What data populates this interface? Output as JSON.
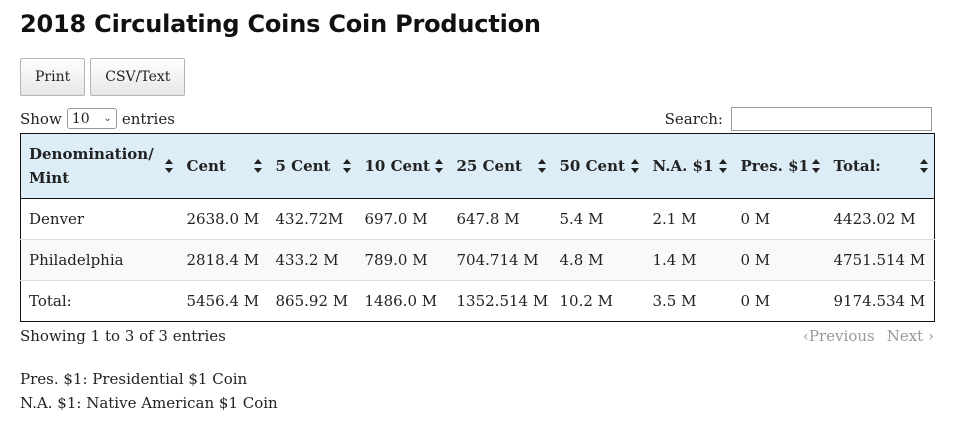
{
  "page": {
    "title": "2018 Circulating Coins Coin Production"
  },
  "toolbar": {
    "print_label": "Print",
    "csv_label": "CSV/Text"
  },
  "length": {
    "show_label": "Show",
    "selected": "10",
    "entries_label": "entries"
  },
  "search": {
    "label": "Search:",
    "value": "",
    "placeholder": ""
  },
  "table": {
    "headers": [
      "Denomination/ Mint",
      "Cent",
      "5 Cent",
      "10 Cent",
      "25 Cent",
      "50 Cent",
      "N.A. $1",
      "Pres. $1",
      "Total:"
    ],
    "rows": [
      [
        "Denver",
        "2638.0 M",
        "432.72M",
        "697.0 M",
        "647.8 M",
        "5.4 M",
        "2.1 M",
        "0 M",
        "4423.02 M"
      ],
      [
        "Philadelphia",
        "2818.4 M",
        "433.2 M",
        "789.0 M",
        "704.714 M",
        "4.8 M",
        "1.4 M",
        "0 M",
        "4751.514 M"
      ],
      [
        "Total:",
        "5456.4 M",
        "865.92 M",
        "1486.0 M",
        "1352.514 M",
        "10.2 M",
        "3.5 M",
        "0 M",
        "9174.534 M"
      ]
    ]
  },
  "footer": {
    "info": "Showing 1 to 3 of 3 entries",
    "previous": "Previous",
    "next": "Next"
  },
  "notes": [
    "Pres. $1: Presidential $1 Coin",
    "N.A. $1: Native American $1 Coin"
  ]
}
